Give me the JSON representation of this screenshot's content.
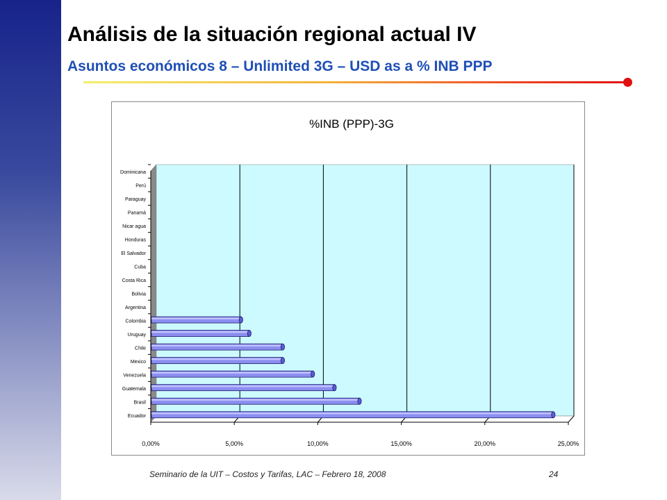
{
  "slide": {
    "title": "Análisis de la situación regional actual IV",
    "subtitle": "Asuntos económicos 8 – Unlimited 3G – USD as a % INB PPP",
    "footer": "Seminario de la UIT – Costos y Tarifas, LAC – Febrero 18, 2008",
    "page_number": "24"
  },
  "colors": {
    "side_band_top": "#17238a",
    "subtitle": "#1f4fb4",
    "plot_background": "#ccfaff",
    "bar_fill": "#8c8ef0",
    "bar_outline": "#1a1a66"
  },
  "chart_data": {
    "type": "bar",
    "orientation": "horizontal",
    "title": "%INB (PPP)-3G",
    "categories": [
      "Ecuador",
      "Brasil",
      "Guatemala",
      "Venezuela",
      "Mexico",
      "Chile",
      "Uruguay",
      "Colombia",
      "Argentina",
      "Bolivia",
      "Costa Rica",
      "Cuba",
      "El Salvador",
      "Honduras",
      "Nicaragua",
      "Panama",
      "Paraguay",
      "Peru",
      "Dominicana"
    ],
    "category_labels": [
      "Ecuador",
      "Brasil",
      "Guatemala",
      "Venezuela",
      "Mexico",
      "Chile",
      "Uruguay",
      "Colombia",
      "Argentina",
      "Bolivia",
      "Costa Rica",
      "Cuba",
      "El Salvador",
      "Honduras",
      "Nicar agua",
      "Panamá",
      "Paraguay",
      "Perú",
      "Dominicana"
    ],
    "values": [
      24.1,
      12.5,
      11.0,
      9.7,
      7.9,
      7.9,
      5.9,
      5.4,
      0,
      0,
      0,
      0,
      0,
      0,
      0,
      0,
      0,
      0,
      0
    ],
    "xlim": [
      0,
      25
    ],
    "x_ticks": [
      0,
      5,
      10,
      15,
      20,
      25
    ],
    "x_tick_labels": [
      "0,00%",
      "5,00%",
      "10,00%",
      "15,00%",
      "20,00%",
      "25,00%"
    ],
    "xlabel": "",
    "ylabel": "",
    "grid": "vertical major gridlines",
    "legend": "none",
    "style": "3D cylinder bars"
  }
}
